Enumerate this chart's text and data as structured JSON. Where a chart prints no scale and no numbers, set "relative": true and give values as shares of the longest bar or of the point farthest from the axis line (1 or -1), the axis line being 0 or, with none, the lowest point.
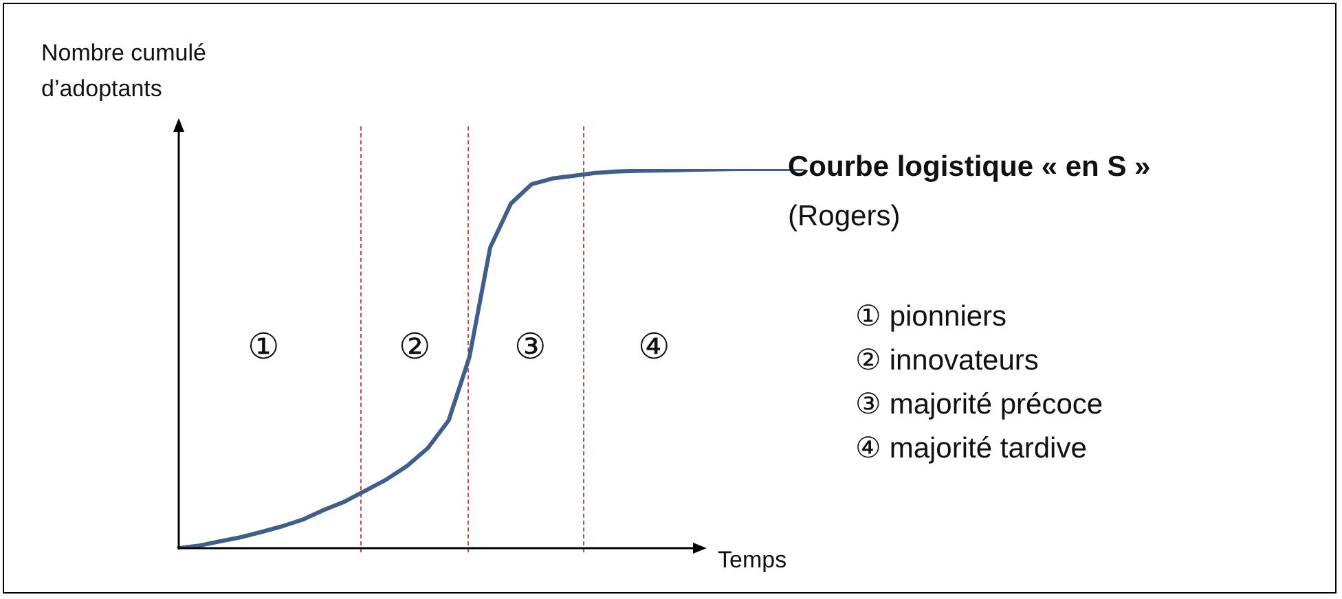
{
  "chart_data": {
    "type": "line",
    "relative": true,
    "title": "Courbe logistique « en S »",
    "subtitle": "(Rogers)",
    "ylabel": "Nombre cumulé d’adoptants",
    "xlabel": "Temps",
    "marker": "none",
    "line_style": "solid",
    "categories": [
      null,
      null,
      null,
      null,
      null,
      null,
      null,
      null,
      null,
      null,
      null,
      null,
      null,
      null,
      null,
      null,
      null,
      null,
      null,
      null,
      null,
      null,
      null,
      null,
      null,
      null,
      null,
      null,
      null,
      null,
      null
    ],
    "series": [
      {
        "color": "#3f5f8a",
        "values": [
          0,
          0.007,
          0.018,
          0.029,
          0.043,
          0.058,
          0.076,
          0.101,
          0.123,
          0.152,
          0.181,
          0.217,
          0.264,
          0.337,
          0.504,
          0.793,
          0.909,
          0.96,
          0.975,
          0.982,
          0.989,
          0.993,
          0.995,
          0.996,
          0.997,
          0.998,
          0.999,
          1,
          1,
          1,
          1
        ]
      }
    ],
    "annotations": [
      "①",
      "②",
      "③",
      "④",
      "① pionniers",
      "② innovateurs",
      "③ majorité précoce",
      "④ majorité tardive"
    ]
  }
}
